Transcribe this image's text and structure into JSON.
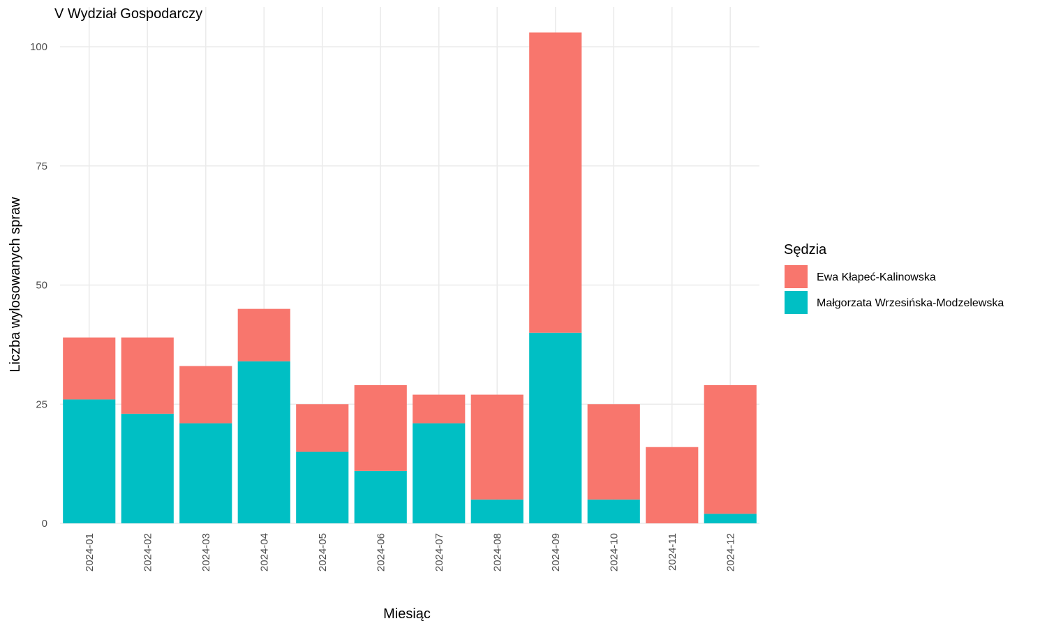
{
  "chart_data": {
    "type": "bar",
    "stacked": true,
    "title": "V Wydział Gospodarczy",
    "xlabel": "Miesiąc",
    "ylabel": "Liczba wylosowanych spraw",
    "categories": [
      "2024-01",
      "2024-02",
      "2024-03",
      "2024-04",
      "2024-05",
      "2024-06",
      "2024-07",
      "2024-08",
      "2024-09",
      "2024-10",
      "2024-11",
      "2024-12"
    ],
    "series": [
      {
        "name": "Małgorzata Wrzesińska-Modzelewska",
        "color": "#00BFC4",
        "values": [
          26,
          23,
          21,
          34,
          15,
          11,
          21,
          5,
          40,
          5,
          0,
          2
        ]
      },
      {
        "name": "Ewa Kłapeć-Kalinowska",
        "color": "#F8766D",
        "values": [
          13,
          16,
          12,
          11,
          10,
          18,
          6,
          22,
          63,
          20,
          16,
          27
        ]
      }
    ],
    "legend_order": [
      1,
      0
    ],
    "ylim": [
      0,
      105
    ],
    "yticks": [
      0,
      25,
      50,
      75,
      100
    ],
    "grid": true,
    "legend_title": "Sędzia",
    "legend_position": "right"
  }
}
